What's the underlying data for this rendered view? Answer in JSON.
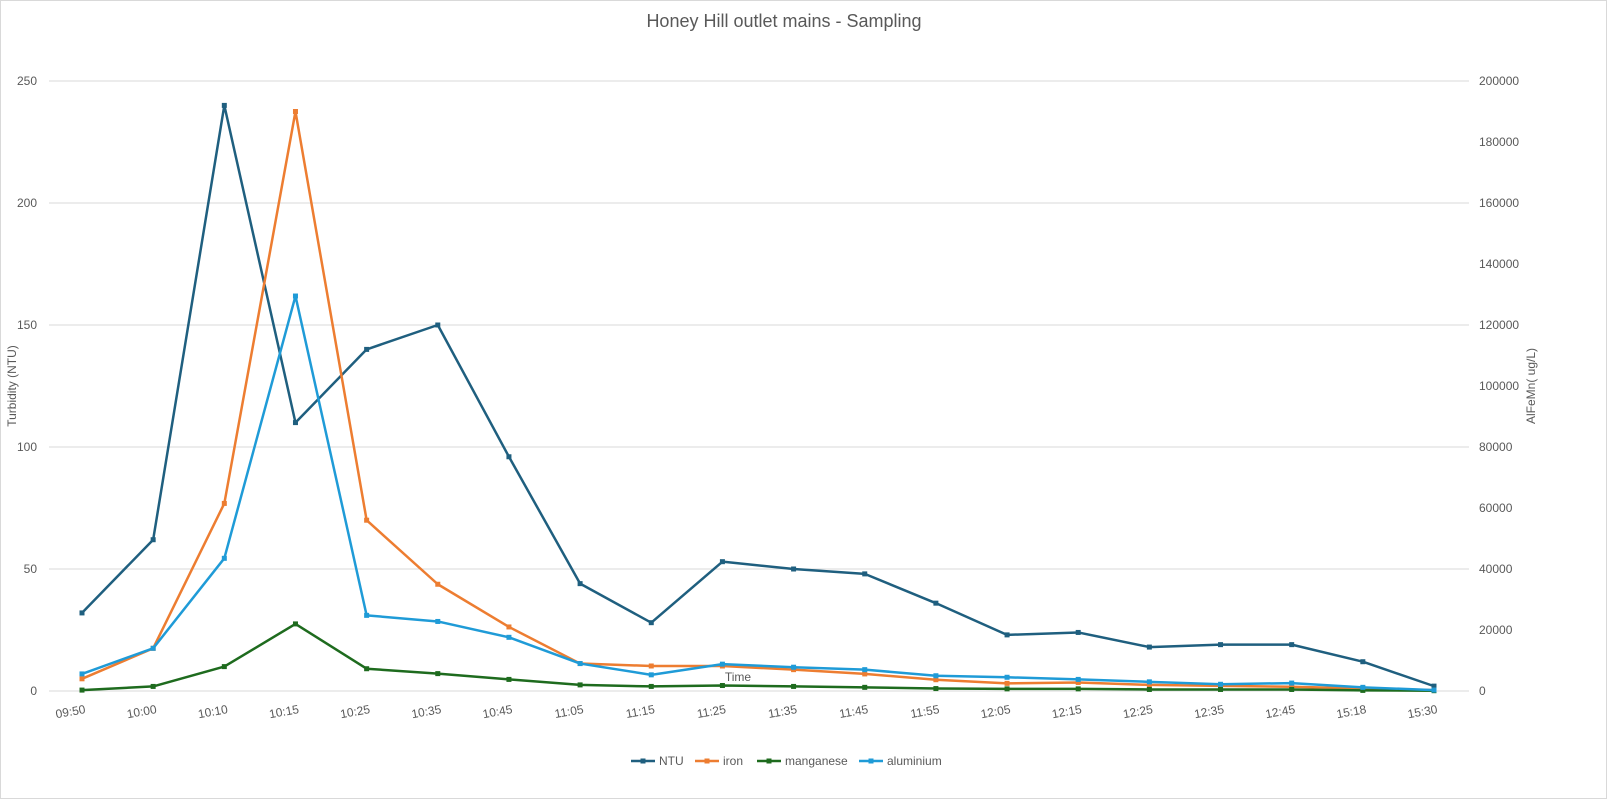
{
  "chart_data": {
    "type": "line",
    "title": "Honey Hill outlet mains - Sampling",
    "xlabel": "Time",
    "ylabel": "Turbidity (NTU)",
    "y2label": "AlFeMn( ug/L)",
    "categories": [
      "09:50",
      "10:00",
      "10:10",
      "10:15",
      "10:25",
      "10:35",
      "10:45",
      "11:05",
      "11:15",
      "11:25",
      "11:35",
      "11:45",
      "11:55",
      "12:05",
      "12:15",
      "12:25",
      "12:35",
      "12:45",
      "15:18",
      "15:30"
    ],
    "ylim": [
      0,
      250
    ],
    "yticks": [
      "0",
      "50",
      "100",
      "150",
      "200",
      "250"
    ],
    "y2lim": [
      0,
      200000
    ],
    "y2ticks": [
      "0",
      "20000",
      "40000",
      "60000",
      "80000",
      "100000",
      "120000",
      "140000",
      "160000",
      "180000",
      "200000"
    ],
    "grid": true,
    "legend_position": "bottom",
    "series": [
      {
        "name": "NTU",
        "axis": "left",
        "color": "#1f5f7f",
        "values": [
          32,
          62,
          240,
          110,
          140,
          150,
          96,
          44,
          28,
          53,
          50,
          48,
          36,
          23,
          24,
          18,
          19,
          19,
          12,
          2
        ]
      },
      {
        "name": "iron",
        "axis": "right",
        "color": "#ed7d31",
        "values": [
          4000,
          14000,
          61500,
          190000,
          56000,
          35000,
          21000,
          9000,
          8200,
          8200,
          7000,
          5600,
          3700,
          2500,
          2800,
          2000,
          1700,
          1400,
          800,
          300
        ]
      },
      {
        "name": "manganese",
        "axis": "right",
        "color": "#1e6b1e",
        "values": [
          300,
          1500,
          8000,
          22000,
          7300,
          5700,
          3800,
          2000,
          1500,
          1800,
          1500,
          1200,
          800,
          700,
          700,
          500,
          500,
          500,
          200,
          100
        ]
      },
      {
        "name": "aluminium",
        "axis": "right",
        "color": "#1f9bd7",
        "values": [
          5600,
          14000,
          43500,
          129500,
          24800,
          22800,
          17600,
          9000,
          5300,
          8800,
          7800,
          7000,
          5000,
          4500,
          3800,
          3000,
          2200,
          2600,
          1200,
          300
        ]
      }
    ]
  }
}
